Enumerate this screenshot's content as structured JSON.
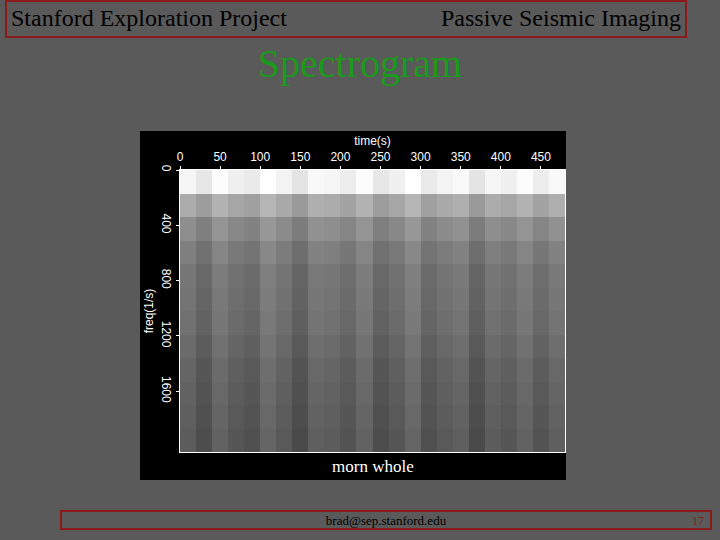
{
  "slide": {
    "header_left": "Stanford Exploration Project",
    "header_right": "Passive Seismic Imaging",
    "heading": "Spectrogram",
    "footer_email": "brad@sep.stanford.edu",
    "page": "17"
  },
  "chart_data": {
    "type": "heatmap",
    "title": "morn whole",
    "x_label": "time(s)",
    "y_label": "freq(1/s)",
    "x": [
      10,
      30,
      50,
      70,
      90,
      110,
      130,
      150,
      170,
      190,
      210,
      230,
      250,
      270,
      290,
      310,
      330,
      350,
      370,
      390,
      410,
      430,
      450,
      470
    ],
    "y": [
      85,
      255,
      425,
      595,
      765,
      935,
      1105,
      1275,
      1445,
      1615,
      1785,
      1955
    ],
    "z": [
      [
        0.87,
        0.82,
        0.89,
        0.85,
        0.83,
        0.9,
        0.86,
        0.81,
        0.88,
        0.87,
        0.84,
        0.89,
        0.82,
        0.85,
        0.9,
        0.83,
        0.86,
        0.88,
        0.81,
        0.87,
        0.85,
        0.89,
        0.84,
        0.88
      ],
      [
        0.62,
        0.57,
        0.64,
        0.6,
        0.58,
        0.65,
        0.61,
        0.56,
        0.63,
        0.62,
        0.59,
        0.64,
        0.57,
        0.6,
        0.65,
        0.58,
        0.61,
        0.63,
        0.56,
        0.62,
        0.6,
        0.64,
        0.59,
        0.63
      ],
      [
        0.52,
        0.47,
        0.54,
        0.5,
        0.48,
        0.55,
        0.51,
        0.46,
        0.53,
        0.52,
        0.49,
        0.54,
        0.47,
        0.5,
        0.55,
        0.48,
        0.51,
        0.53,
        0.46,
        0.52,
        0.5,
        0.54,
        0.49,
        0.53
      ],
      [
        0.47,
        0.42,
        0.49,
        0.45,
        0.43,
        0.5,
        0.46,
        0.41,
        0.48,
        0.47,
        0.44,
        0.49,
        0.42,
        0.45,
        0.5,
        0.43,
        0.46,
        0.48,
        0.41,
        0.47,
        0.45,
        0.49,
        0.44,
        0.48
      ],
      [
        0.44,
        0.39,
        0.46,
        0.42,
        0.4,
        0.47,
        0.43,
        0.38,
        0.45,
        0.44,
        0.41,
        0.46,
        0.39,
        0.42,
        0.47,
        0.4,
        0.43,
        0.45,
        0.38,
        0.44,
        0.42,
        0.46,
        0.41,
        0.45
      ],
      [
        0.43,
        0.38,
        0.45,
        0.41,
        0.39,
        0.46,
        0.42,
        0.37,
        0.44,
        0.43,
        0.4,
        0.45,
        0.38,
        0.41,
        0.46,
        0.39,
        0.42,
        0.44,
        0.37,
        0.43,
        0.41,
        0.45,
        0.4,
        0.44
      ],
      [
        0.42,
        0.37,
        0.44,
        0.4,
        0.38,
        0.45,
        0.41,
        0.36,
        0.43,
        0.42,
        0.39,
        0.44,
        0.37,
        0.4,
        0.45,
        0.38,
        0.41,
        0.43,
        0.36,
        0.42,
        0.4,
        0.44,
        0.39,
        0.43
      ],
      [
        0.4,
        0.35,
        0.42,
        0.38,
        0.36,
        0.43,
        0.39,
        0.34,
        0.41,
        0.4,
        0.37,
        0.42,
        0.35,
        0.38,
        0.43,
        0.36,
        0.39,
        0.41,
        0.34,
        0.4,
        0.38,
        0.42,
        0.37,
        0.41
      ],
      [
        0.38,
        0.33,
        0.4,
        0.36,
        0.34,
        0.41,
        0.37,
        0.32,
        0.39,
        0.38,
        0.35,
        0.4,
        0.33,
        0.36,
        0.41,
        0.34,
        0.37,
        0.39,
        0.32,
        0.38,
        0.36,
        0.4,
        0.35,
        0.39
      ],
      [
        0.37,
        0.32,
        0.39,
        0.35,
        0.33,
        0.4,
        0.36,
        0.31,
        0.38,
        0.37,
        0.34,
        0.39,
        0.32,
        0.35,
        0.4,
        0.33,
        0.36,
        0.38,
        0.31,
        0.37,
        0.35,
        0.39,
        0.34,
        0.38
      ],
      [
        0.36,
        0.31,
        0.38,
        0.34,
        0.32,
        0.39,
        0.35,
        0.3,
        0.37,
        0.36,
        0.33,
        0.38,
        0.31,
        0.34,
        0.39,
        0.32,
        0.35,
        0.37,
        0.3,
        0.36,
        0.34,
        0.38,
        0.33,
        0.37
      ],
      [
        0.35,
        0.3,
        0.37,
        0.33,
        0.31,
        0.38,
        0.34,
        0.29,
        0.36,
        0.35,
        0.32,
        0.37,
        0.3,
        0.33,
        0.38,
        0.31,
        0.34,
        0.36,
        0.29,
        0.35,
        0.33,
        0.37,
        0.32,
        0.36
      ]
    ],
    "xlim": [
      0,
      480
    ],
    "xticks": [
      0,
      50,
      100,
      150,
      200,
      250,
      300,
      350,
      400,
      450
    ],
    "ylim": [
      0,
      2040
    ],
    "yticks": [
      0,
      400,
      800,
      1200,
      1600
    ],
    "color": "gray",
    "grid": false
  }
}
